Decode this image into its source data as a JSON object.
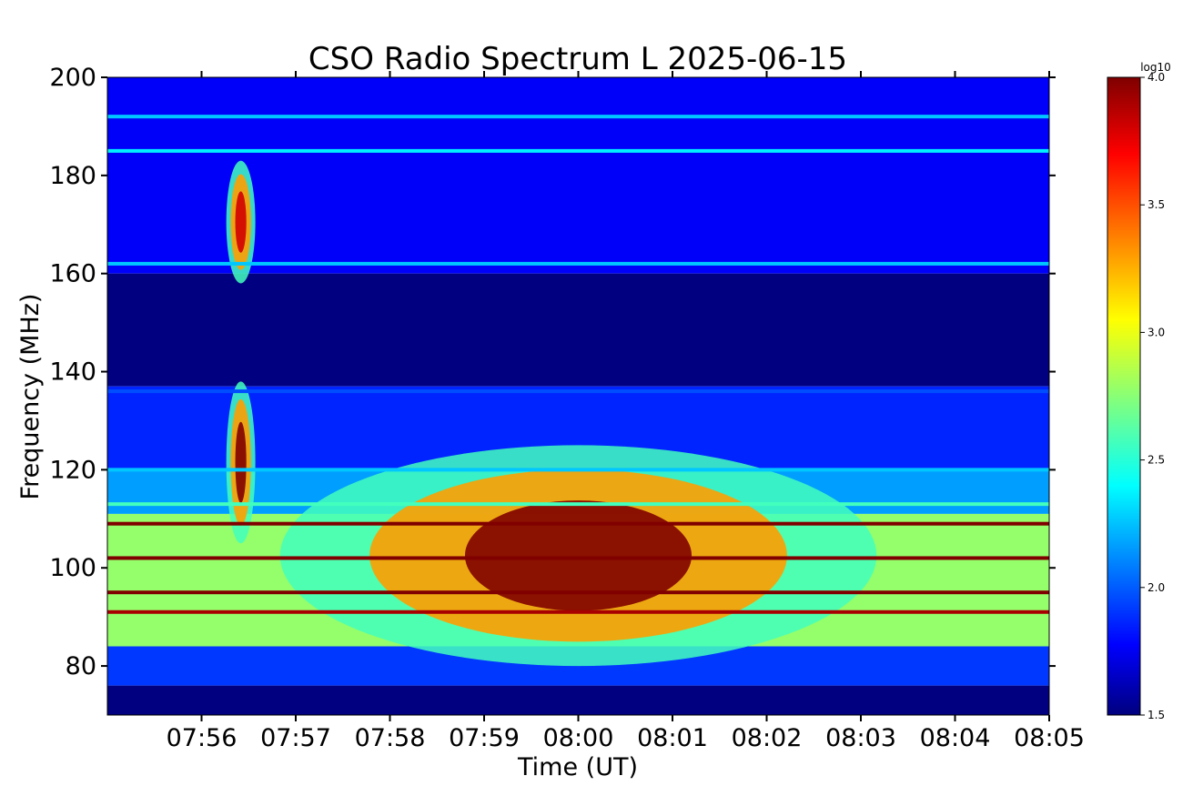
{
  "chart_data": {
    "type": "heatmap",
    "title": "CSO Radio Spectrum L 2025-06-15",
    "xlabel": "Time (UT)",
    "ylabel": "Frequency (MHz)",
    "x_range": [
      "07:55:00",
      "08:05:00"
    ],
    "x_ticks": [
      "07:56",
      "07:57",
      "07:58",
      "07:59",
      "08:00",
      "08:01",
      "08:02",
      "08:03",
      "08:04",
      "08:05"
    ],
    "y_range": [
      70,
      200
    ],
    "y_ticks": [
      80,
      100,
      120,
      140,
      160,
      180,
      200
    ],
    "colorbar": {
      "label": "log10",
      "range": [
        1.5,
        4.0
      ],
      "ticks": [
        "1.5",
        "2.0",
        "2.5",
        "3.0",
        "3.5",
        "4.0"
      ],
      "colormap": "jet"
    },
    "background_levels": [
      {
        "freq_range": [
          160,
          200
        ],
        "log10": 1.8
      },
      {
        "freq_range": [
          137,
          160
        ],
        "log10": 1.5
      },
      {
        "freq_range": [
          120,
          137
        ],
        "log10": 1.9
      },
      {
        "freq_range": [
          111,
          120
        ],
        "log10": 2.2
      },
      {
        "freq_range": [
          84,
          111
        ],
        "log10": 2.8
      },
      {
        "freq_range": [
          76,
          84
        ],
        "log10": 1.95
      },
      {
        "freq_range": [
          70,
          76
        ],
        "log10": 1.5
      }
    ],
    "interference_lines": [
      {
        "freq": 109,
        "log10": 4.0
      },
      {
        "freq": 102,
        "log10": 4.0
      },
      {
        "freq": 95,
        "log10": 4.0
      },
      {
        "freq": 91,
        "log10": 3.9
      },
      {
        "freq": 113,
        "log10": 2.6
      },
      {
        "freq": 192,
        "log10": 2.3
      },
      {
        "freq": 185,
        "log10": 2.4
      },
      {
        "freq": 162,
        "log10": 2.3
      },
      {
        "freq": 136,
        "log10": 2.0
      },
      {
        "freq": 120,
        "log10": 2.3
      }
    ],
    "bursts": [
      {
        "time": "07:56:25",
        "freq_range": [
          158,
          183
        ],
        "peak_log10": 3.8
      },
      {
        "time": "07:56:25",
        "freq_range": [
          105,
          138
        ],
        "peak_log10": 4.0
      },
      {
        "time_range": [
          "07:56:50",
          "08:03:10"
        ],
        "freq_range": [
          80,
          125
        ],
        "peak_log10": 4.0,
        "kind": "drifting continuum"
      }
    ],
    "colors": {
      "low": "#00007f",
      "mid_low": "#0000ff",
      "mid": "#00ffff",
      "mid_high": "#ffff00",
      "high": "#ff0000",
      "max": "#7f0000"
    }
  }
}
